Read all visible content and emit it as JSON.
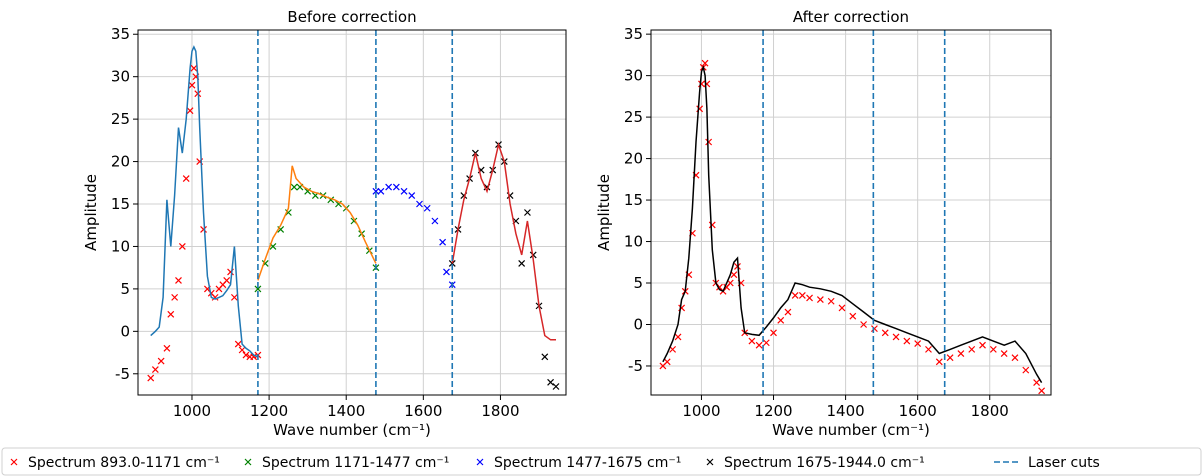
{
  "chart_data": [
    {
      "type": "scatter",
      "title": "Before correction",
      "xlabel": "Wave number (cm⁻¹)",
      "ylabel": "Amplitude",
      "xlim": [
        860,
        1970
      ],
      "ylim": [
        -7.5,
        35.5
      ],
      "xticks": [
        1000,
        1200,
        1400,
        1600,
        1800
      ],
      "yticks": [
        -5,
        0,
        5,
        10,
        15,
        20,
        25,
        30,
        35
      ],
      "grid": true,
      "cuts": [
        1171,
        1477,
        1675
      ],
      "series": [
        {
          "name": "Spectrum 893.0-1171 cm⁻¹",
          "kind": "points",
          "color": "#ff0000",
          "x": [
            893,
            905,
            920,
            935,
            945,
            955,
            965,
            975,
            985,
            995,
            1000,
            1005,
            1010,
            1015,
            1020,
            1030,
            1040,
            1050,
            1060,
            1070,
            1080,
            1090,
            1100,
            1110,
            1120,
            1130,
            1140,
            1150,
            1160,
            1171
          ],
          "y": [
            -5.5,
            -4.5,
            -3.5,
            -2,
            2,
            4,
            6,
            10,
            18,
            26,
            29,
            31,
            30,
            28,
            20,
            12,
            5,
            4.5,
            4,
            5,
            5.5,
            6,
            7,
            4,
            -1.5,
            -2.2,
            -2.8,
            -3,
            -3,
            -2.8
          ]
        },
        {
          "name": "Spectrum 1171-1477 cm⁻¹",
          "kind": "points",
          "color": "#008000",
          "x": [
            1171,
            1190,
            1210,
            1230,
            1250,
            1265,
            1280,
            1300,
            1320,
            1340,
            1360,
            1380,
            1400,
            1420,
            1440,
            1460,
            1477
          ],
          "y": [
            5,
            8,
            10,
            12,
            14,
            17,
            17,
            16.5,
            16,
            16,
            15.5,
            15,
            14.5,
            13,
            11.5,
            9.5,
            7.5
          ]
        },
        {
          "name": "Spectrum 1477-1675 cm⁻¹",
          "kind": "points",
          "color": "#0000ff",
          "x": [
            1477,
            1490,
            1510,
            1530,
            1550,
            1570,
            1590,
            1610,
            1630,
            1650,
            1660,
            1675
          ],
          "y": [
            16.5,
            16.5,
            17,
            17,
            16.5,
            16,
            15,
            14.5,
            13,
            10.5,
            7,
            5.5
          ]
        },
        {
          "name": "Spectrum 1675-1944.0 cm⁻¹",
          "kind": "points",
          "color": "#000000",
          "x": [
            1675,
            1690,
            1705,
            1720,
            1735,
            1750,
            1765,
            1780,
            1795,
            1810,
            1825,
            1840,
            1855,
            1870,
            1885,
            1900,
            1915,
            1930,
            1944
          ],
          "y": [
            8,
            12,
            16,
            18,
            21,
            19,
            17,
            19,
            22,
            20,
            16,
            13,
            8,
            14,
            9,
            3,
            -3,
            -6,
            -6.5
          ]
        },
        {
          "name": "",
          "kind": "line",
          "color": "#1f77b4",
          "x": [
            893,
            905,
            915,
            925,
            935,
            945,
            955,
            965,
            975,
            985,
            995,
            1000,
            1005,
            1010,
            1015,
            1020,
            1030,
            1040,
            1050,
            1060,
            1070,
            1080,
            1090,
            1100,
            1110,
            1120,
            1130,
            1140,
            1150,
            1160,
            1171
          ],
          "y": [
            -0.5,
            0,
            0.5,
            4,
            15.5,
            10,
            16,
            24,
            21,
            25,
            31,
            33,
            33.5,
            33,
            30,
            24,
            14,
            6.5,
            4,
            3.8,
            4,
            4.2,
            4.8,
            5.5,
            10,
            3,
            -1.5,
            -2,
            -2.3,
            -2.8,
            -3
          ]
        },
        {
          "name": "",
          "kind": "line",
          "color": "#ff7f0e",
          "x": [
            1171,
            1190,
            1210,
            1230,
            1250,
            1260,
            1270,
            1290,
            1310,
            1330,
            1350,
            1370,
            1390,
            1410,
            1430,
            1450,
            1477
          ],
          "y": [
            6,
            8.5,
            11,
            12.5,
            14.5,
            19.5,
            18,
            17,
            16.5,
            16.2,
            15.8,
            15.5,
            15,
            14,
            12.5,
            10.5,
            8
          ]
        },
        {
          "name": "",
          "kind": "line",
          "color": "#d62728",
          "x": [
            1675,
            1690,
            1705,
            1720,
            1735,
            1750,
            1765,
            1780,
            1795,
            1810,
            1825,
            1840,
            1855,
            1870,
            1885,
            1900,
            1915,
            1930,
            1944
          ],
          "y": [
            8,
            12,
            15.5,
            18,
            21,
            18,
            16.5,
            19,
            22,
            20,
            15,
            11.5,
            9,
            13,
            8.5,
            3,
            -0.5,
            -1,
            -1
          ]
        }
      ]
    },
    {
      "type": "scatter",
      "title": "After correction",
      "xlabel": "Wave number (cm⁻¹)",
      "ylabel": "Amplitude",
      "xlim": [
        860,
        1970
      ],
      "ylim": [
        -8.5,
        35.5
      ],
      "xticks": [
        1000,
        1200,
        1400,
        1600,
        1800
      ],
      "yticks": [
        -5,
        0,
        5,
        10,
        15,
        20,
        25,
        30,
        35
      ],
      "grid": true,
      "cuts": [
        1171,
        1477,
        1675
      ],
      "series": [
        {
          "name": "",
          "kind": "points",
          "color": "#ff0000",
          "x": [
            893,
            905,
            920,
            935,
            945,
            955,
            965,
            975,
            985,
            995,
            1000,
            1005,
            1010,
            1015,
            1020,
            1030,
            1040,
            1050,
            1060,
            1070,
            1080,
            1090,
            1100,
            1110,
            1120,
            1140,
            1160,
            1180,
            1200,
            1220,
            1240,
            1260,
            1280,
            1300,
            1330,
            1360,
            1390,
            1420,
            1450,
            1480,
            1510,
            1540,
            1570,
            1600,
            1630,
            1660,
            1690,
            1720,
            1750,
            1780,
            1810,
            1840,
            1870,
            1900,
            1930,
            1944
          ],
          "y": [
            -5,
            -4.5,
            -3,
            -1.5,
            2,
            4,
            6,
            11,
            18,
            26,
            29,
            31,
            31.5,
            29,
            22,
            12,
            5,
            4.5,
            4,
            4.5,
            5,
            6,
            7,
            5,
            -1,
            -2,
            -2.5,
            -2.2,
            -1,
            0.5,
            1.5,
            3.5,
            3.5,
            3.2,
            3,
            2.8,
            2,
            1,
            0,
            -0.5,
            -1,
            -1.5,
            -2,
            -2.3,
            -3,
            -4.5,
            -4,
            -3.5,
            -3,
            -2.5,
            -3,
            -3.5,
            -4,
            -5.5,
            -7,
            -8
          ]
        },
        {
          "name": "",
          "kind": "line",
          "color": "#000000",
          "x": [
            893,
            905,
            920,
            935,
            945,
            955,
            965,
            975,
            985,
            995,
            1000,
            1005,
            1010,
            1015,
            1020,
            1030,
            1040,
            1050,
            1060,
            1070,
            1080,
            1090,
            1100,
            1110,
            1120,
            1140,
            1160,
            1180,
            1200,
            1220,
            1240,
            1260,
            1280,
            1300,
            1330,
            1360,
            1390,
            1420,
            1450,
            1480,
            1510,
            1540,
            1570,
            1600,
            1630,
            1660,
            1690,
            1720,
            1750,
            1780,
            1810,
            1840,
            1870,
            1900,
            1930,
            1944
          ],
          "y": [
            -4.5,
            -3.5,
            -2,
            0,
            3,
            4,
            8,
            14,
            22,
            28,
            30.5,
            31,
            30,
            26,
            18,
            9,
            5,
            4.2,
            4,
            5,
            6,
            7.5,
            8,
            2,
            -1,
            -1.2,
            -1.3,
            -0.3,
            0.8,
            2,
            3,
            5,
            4.8,
            4.5,
            4.3,
            4,
            3.5,
            2.5,
            1.5,
            0.5,
            0,
            -0.5,
            -1,
            -1.5,
            -2,
            -3.5,
            -3,
            -2.5,
            -2,
            -1.5,
            -2,
            -2.5,
            -2,
            -3.5,
            -6,
            -7
          ]
        }
      ]
    }
  ],
  "legend": {
    "position": "bottom",
    "entries": [
      {
        "label": "Spectrum 893.0-1171 cm⁻¹",
        "color": "#ff0000",
        "marker": "x"
      },
      {
        "label": "Spectrum 1171-1477 cm⁻¹",
        "color": "#008000",
        "marker": "x"
      },
      {
        "label": "Spectrum 1477-1675 cm⁻¹",
        "color": "#0000ff",
        "marker": "x"
      },
      {
        "label": "Spectrum 1675-1944.0 cm⁻¹",
        "color": "#000000",
        "marker": "x"
      },
      {
        "label": "Laser cuts",
        "color": "#1f77b4",
        "marker": "dashed"
      }
    ]
  }
}
